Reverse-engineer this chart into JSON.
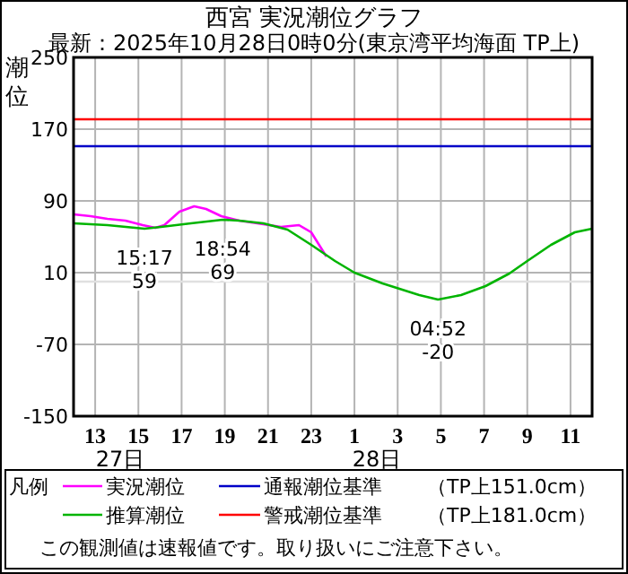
{
  "chart_data": {
    "type": "line",
    "title": "西宮 実況潮位グラフ",
    "subtitle": "最新：2025年10月28日0時0分(東京湾平均海面 TP上)",
    "ylabel": "潮位",
    "legend_title": "凡例",
    "xlim": [
      "2025-10-27T12:00",
      "2025-10-28T12:00"
    ],
    "xticks": [
      {
        "value": "2025-10-27T13:00",
        "label": "13"
      },
      {
        "value": "2025-10-27T15:00",
        "label": "15"
      },
      {
        "value": "2025-10-27T17:00",
        "label": "17"
      },
      {
        "value": "2025-10-27T19:00",
        "label": "19"
      },
      {
        "value": "2025-10-27T21:00",
        "label": "21"
      },
      {
        "value": "2025-10-27T23:00",
        "label": "23"
      },
      {
        "value": "2025-10-28T01:00",
        "label": "1"
      },
      {
        "value": "2025-10-28T03:00",
        "label": "3"
      },
      {
        "value": "2025-10-28T05:00",
        "label": "5"
      },
      {
        "value": "2025-10-28T07:00",
        "label": "7"
      },
      {
        "value": "2025-10-28T09:00",
        "label": "9"
      },
      {
        "value": "2025-10-28T11:00",
        "label": "11"
      }
    ],
    "ylim": [
      -150,
      250
    ],
    "yticks": [
      -150,
      -70,
      10,
      90,
      170,
      250
    ],
    "grid": true,
    "legend": "bottom",
    "marker": "none",
    "line_style": "solid",
    "series": [
      {
        "name": "実況潮位",
        "color": "#ff00ff",
        "x": [
          "2025-10-27T12:00",
          "2025-10-27T12:47",
          "2025-10-27T13:34",
          "2025-10-27T14:24",
          "2025-10-27T15:12",
          "2025-10-27T15:47",
          "2025-10-27T16:12",
          "2025-10-27T16:54",
          "2025-10-27T17:35",
          "2025-10-27T18:08",
          "2025-10-27T18:50",
          "2025-10-27T19:40",
          "2025-10-27T20:47",
          "2025-10-27T21:36",
          "2025-10-27T22:26",
          "2025-10-27T23:00",
          "2025-10-27T23:42"
        ],
        "values": [
          75,
          73,
          70,
          68,
          63,
          60,
          63,
          78,
          84,
          81,
          73,
          68,
          64,
          61,
          63,
          55,
          28
        ]
      },
      {
        "name": "推算潮位",
        "color": "#00b400",
        "x": [
          "2025-10-27T12:00",
          "2025-10-27T13:34",
          "2025-10-27T15:17",
          "2025-10-27T16:03",
          "2025-10-27T17:26",
          "2025-10-27T18:54",
          "2025-10-27T19:40",
          "2025-10-27T20:47",
          "2025-10-27T21:54",
          "2025-10-27T23:00",
          "2025-10-28T00:06",
          "2025-10-28T01:00",
          "2025-10-28T02:18",
          "2025-10-28T04:00",
          "2025-10-28T04:52",
          "2025-10-28T05:56",
          "2025-10-28T07:04",
          "2025-10-28T08:10",
          "2025-10-28T09:00",
          "2025-10-28T10:06",
          "2025-10-28T11:12",
          "2025-10-28T12:00"
        ],
        "values": [
          65,
          63,
          59,
          61,
          65,
          69,
          68,
          65,
          58,
          41,
          23,
          10,
          -2,
          -15,
          -20,
          -15,
          -5,
          9,
          23,
          41,
          55,
          59
        ]
      }
    ],
    "ref_lines": [
      {
        "axis": "y",
        "value": 151,
        "label": "通報潮位基準",
        "color": "#0000c8"
      },
      {
        "axis": "y",
        "value": 181,
        "label": "警戒潮位基準",
        "color": "#ff0000"
      },
      {
        "axis": "y",
        "value": 0,
        "color": "#e0e0e0"
      }
    ],
    "annotations": [
      "（TP上151.0cm）",
      "（TP上181.0cm）",
      "この観測値は速報値です。取り扱いにご注意下さい。",
      "27日",
      "28日",
      {
        "text": "15:17\n59",
        "x": "2025-10-27T15:17",
        "y": 59
      },
      {
        "text": "18:54\n69",
        "x": "2025-10-27T18:54",
        "y": 69
      },
      {
        "text": "04:52\n-20",
        "x": "2025-10-28T04:52",
        "y": -20
      }
    ]
  }
}
